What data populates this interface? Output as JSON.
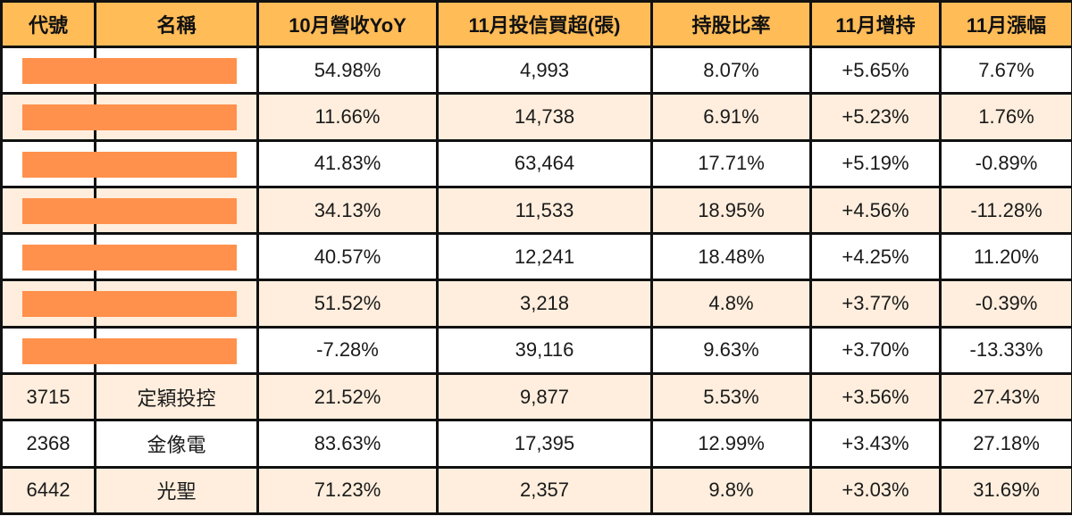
{
  "table": {
    "colors": {
      "header_bg": "#ffbc57",
      "row_alt_bg": "#ffeedd",
      "row_bg": "#ffffff",
      "redaction": "#ff914d",
      "border": "#111111"
    },
    "headers": [
      "代號",
      "名稱",
      "10月營收YoY",
      "11月投信買超(張)",
      "持股比率",
      "11月增持",
      "11月漲幅"
    ],
    "rows": [
      {
        "code": "",
        "name": "",
        "redacted": true,
        "rev_yoy": "54.98%",
        "trust_buy": "4,993",
        "holding": "8.07%",
        "increase": "+5.65%",
        "change": "7.67%"
      },
      {
        "code": "",
        "name": "",
        "redacted": true,
        "rev_yoy": "11.66%",
        "trust_buy": "14,738",
        "holding": "6.91%",
        "increase": "+5.23%",
        "change": "1.76%"
      },
      {
        "code": "",
        "name": "",
        "redacted": true,
        "rev_yoy": "41.83%",
        "trust_buy": "63,464",
        "holding": "17.71%",
        "increase": "+5.19%",
        "change": "-0.89%"
      },
      {
        "code": "",
        "name": "",
        "redacted": true,
        "rev_yoy": "34.13%",
        "trust_buy": "11,533",
        "holding": "18.95%",
        "increase": "+4.56%",
        "change": "-11.28%"
      },
      {
        "code": "",
        "name": "",
        "redacted": true,
        "rev_yoy": "40.57%",
        "trust_buy": "12,241",
        "holding": "18.48%",
        "increase": "+4.25%",
        "change": "11.20%"
      },
      {
        "code": "",
        "name": "",
        "redacted": true,
        "rev_yoy": "51.52%",
        "trust_buy": "3,218",
        "holding": "4.8%",
        "increase": "+3.77%",
        "change": "-0.39%"
      },
      {
        "code": "",
        "name": "",
        "redacted": true,
        "rev_yoy": "-7.28%",
        "trust_buy": "39,116",
        "holding": "9.63%",
        "increase": "+3.70%",
        "change": "-13.33%"
      },
      {
        "code": "3715",
        "name": "定穎投控",
        "redacted": false,
        "rev_yoy": "21.52%",
        "trust_buy": "9,877",
        "holding": "5.53%",
        "increase": "+3.56%",
        "change": "27.43%"
      },
      {
        "code": "2368",
        "name": "金像電",
        "redacted": false,
        "rev_yoy": "83.63%",
        "trust_buy": "17,395",
        "holding": "12.99%",
        "increase": "+3.43%",
        "change": "27.18%"
      },
      {
        "code": "6442",
        "name": "光聖",
        "redacted": false,
        "rev_yoy": "71.23%",
        "trust_buy": "2,357",
        "holding": "9.8%",
        "increase": "+3.03%",
        "change": "31.69%"
      }
    ]
  }
}
